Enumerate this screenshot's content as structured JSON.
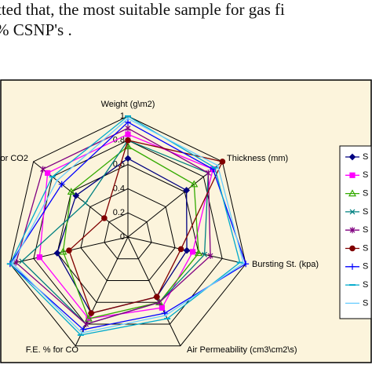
{
  "text_lines": [
    "tted that, the most suitable sample for gas fi",
    "% CSNP's ."
  ],
  "chart_data": {
    "type": "radar",
    "categories": [
      "Weight (g\\m2)",
      "Thickness (mm)",
      "Bursting St. (kpa)",
      "Air Permeability (cm3\\cm2\\s)",
      "F.E.  % for CO",
      null,
      "or CO2"
    ],
    "rlim": [
      0,
      1
    ],
    "rticks": [
      0,
      0.2,
      0.4,
      0.6,
      0.8,
      1
    ],
    "grid": true,
    "series": [
      {
        "name": "S",
        "color": "#000080",
        "marker": "diamond",
        "values": [
          0.65,
          0.62,
          0.5,
          0.55,
          0.7,
          0.6,
          0.55
        ]
      },
      {
        "name": "S",
        "color": "#ff00ff",
        "marker": "square",
        "values": [
          0.85,
          0.9,
          0.55,
          0.65,
          0.75,
          0.75,
          0.85
        ]
      },
      {
        "name": "S",
        "color": "#33aa00",
        "marker": "triangle",
        "values": [
          0.75,
          0.7,
          0.6,
          0.6,
          0.75,
          0.55,
          0.6
        ]
      },
      {
        "name": "S",
        "color": "#008080",
        "marker": "cross",
        "values": [
          0.8,
          0.85,
          0.65,
          0.6,
          0.8,
          0.9,
          0.45
        ]
      },
      {
        "name": "S",
        "color": "#800080",
        "marker": "star",
        "values": [
          0.9,
          0.85,
          0.7,
          0.6,
          0.8,
          0.95,
          0.9
        ]
      },
      {
        "name": "S",
        "color": "#800000",
        "marker": "circle",
        "values": [
          0.8,
          1.0,
          0.45,
          0.55,
          0.7,
          0.5,
          0.25
        ]
      },
      {
        "name": "S",
        "color": "#0000ff",
        "marker": "plus",
        "values": [
          0.95,
          0.9,
          1.0,
          0.7,
          0.85,
          1.0,
          0.7
        ]
      },
      {
        "name": "S",
        "color": "#00aacc",
        "marker": "dash",
        "values": [
          1.0,
          0.92,
          0.95,
          0.75,
          0.9,
          1.0,
          0.8
        ]
      },
      {
        "name": "S",
        "color": "#66ccff",
        "marker": "none",
        "values": [
          0.98,
          0.95,
          0.98,
          0.72,
          0.88,
          0.98,
          0.75
        ]
      }
    ]
  }
}
